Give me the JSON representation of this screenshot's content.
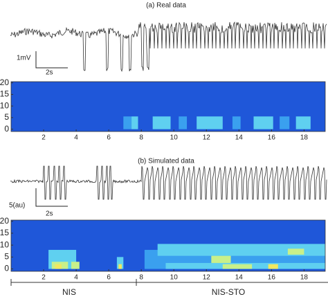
{
  "panel_a": {
    "title": "(a) Real data",
    "scale_y": "1mV",
    "scale_x": "2s",
    "heatmap": {
      "xlim": [
        0,
        19.3
      ],
      "ylim": [
        -1,
        20.5
      ],
      "xticks": [
        2,
        4,
        6,
        8,
        10,
        12,
        14,
        16,
        18
      ],
      "yticks": [
        0,
        5,
        10,
        15,
        20
      ]
    }
  },
  "panel_b": {
    "title": "(b) Simulated data",
    "scale_y": "5(au)",
    "scale_x": "2s",
    "heatmap": {
      "xlim": [
        0,
        19.3
      ],
      "ylim": [
        -1,
        20.5
      ],
      "xticks": [
        2,
        4,
        6,
        8,
        10,
        12,
        14,
        16,
        18
      ],
      "yticks": [
        0,
        5,
        10,
        15,
        20
      ]
    }
  },
  "segments": [
    "NIS",
    "NIS-STO"
  ]
}
